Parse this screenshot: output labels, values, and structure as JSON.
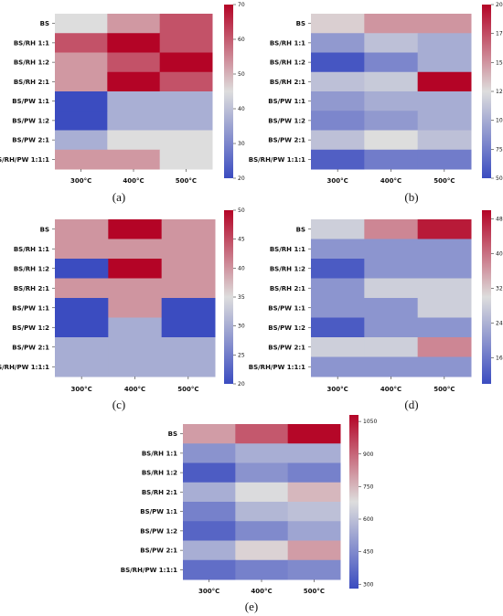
{
  "colors": {
    "low": "#3b4cc0",
    "mid": "#dddddd",
    "high": "#b40426"
  },
  "chart_data": [
    {
      "type": "heatmap",
      "panel": "(a)",
      "rows": [
        "BS",
        "BS/RH 1:1",
        "BS/RH 1:2",
        "BS/RH 2:1",
        "BS/PW 1:1",
        "BS/PW 1:2",
        "BS/PW 2:1",
        "BS/RH/PW 1:1:1"
      ],
      "columns": [
        "300°C",
        "400°C",
        "500°C"
      ],
      "values": [
        [
          45,
          53,
          61
        ],
        [
          61,
          70,
          61
        ],
        [
          53,
          61,
          70
        ],
        [
          53,
          70,
          61
        ],
        [
          20,
          37,
          37
        ],
        [
          20,
          37,
          37
        ],
        [
          37,
          45,
          45
        ],
        [
          53,
          53,
          45
        ]
      ],
      "colorbar": {
        "min": 20,
        "max": 70,
        "ticks": [
          20,
          30,
          40,
          50,
          60,
          70
        ]
      }
    },
    {
      "type": "heatmap",
      "panel": "(b)",
      "rows": [
        "BS",
        "BS/RH 1:1",
        "BS/RH 1:2",
        "BS/RH 2:1",
        "BS/PW 1:1",
        "BS/PW 1:2",
        "BS/PW 2:1",
        "BS/RH/PW 1:1:1"
      ],
      "columns": [
        "300°C",
        "400°C",
        "500°C"
      ],
      "values": [
        [
          130,
          150,
          150
        ],
        [
          90,
          110,
          100
        ],
        [
          55,
          80,
          100
        ],
        [
          110,
          115,
          200
        ],
        [
          90,
          100,
          100
        ],
        [
          80,
          90,
          100
        ],
        [
          110,
          125,
          110
        ],
        [
          60,
          75,
          75
        ]
      ],
      "colorbar": {
        "min": 50,
        "max": 200,
        "ticks": [
          50,
          75,
          100,
          125,
          150,
          175,
          200
        ]
      }
    },
    {
      "type": "heatmap",
      "panel": "(c)",
      "rows": [
        "BS",
        "BS/RH 1:1",
        "BS/RH 1:2",
        "BS/RH 2:1",
        "BS/PW 1:1",
        "BS/PW 1:2",
        "BS/PW 2:1",
        "BS/RH/PW 1:1:1"
      ],
      "columns": [
        "300°C",
        "400°C",
        "500°C"
      ],
      "values": [
        [
          40,
          50,
          40
        ],
        [
          40,
          40,
          40
        ],
        [
          20,
          50,
          40
        ],
        [
          40,
          40,
          40
        ],
        [
          20,
          40,
          20
        ],
        [
          20,
          30,
          20
        ],
        [
          30,
          30,
          30
        ],
        [
          30,
          30,
          30
        ]
      ],
      "colorbar": {
        "min": 20,
        "max": 50,
        "ticks": [
          20,
          25,
          30,
          35,
          40,
          45,
          50
        ]
      }
    },
    {
      "type": "heatmap",
      "panel": "(d)",
      "rows": [
        "BS",
        "BS/RH 1:1",
        "BS/RH 1:2",
        "BS/RH 2:1",
        "BS/PW 1:1",
        "BS/PW 1:2",
        "BS/PW 2:1",
        "BS/RH/PW 1:1:1"
      ],
      "columns": [
        "300°C",
        "400°C",
        "500°C"
      ],
      "values": [
        [
          28,
          38,
          48
        ],
        [
          20,
          20,
          20
        ],
        [
          12,
          20,
          20
        ],
        [
          20,
          28,
          28
        ],
        [
          20,
          20,
          28
        ],
        [
          12,
          20,
          20
        ],
        [
          28,
          28,
          38
        ],
        [
          20,
          20,
          20
        ]
      ],
      "colorbar": {
        "min": 10,
        "max": 50,
        "ticks": [
          16,
          24,
          32,
          40,
          48
        ]
      }
    },
    {
      "type": "heatmap",
      "panel": "(e)",
      "rows": [
        "BS",
        "BS/RH 1:1",
        "BS/RH 1:2",
        "BS/RH 2:1",
        "BS/PW 1:1",
        "BS/PW 1:2",
        "BS/PW 2:1",
        "BS/RH/PW 1:1:1"
      ],
      "columns": [
        "300°C",
        "400°C",
        "500°C"
      ],
      "values": [
        [
          800,
          925,
          1075
        ],
        [
          475,
          550,
          550
        ],
        [
          325,
          475,
          425
        ],
        [
          550,
          675,
          750
        ],
        [
          425,
          575,
          600
        ],
        [
          350,
          450,
          525
        ],
        [
          550,
          700,
          800
        ],
        [
          375,
          425,
          450
        ]
      ],
      "colorbar": {
        "min": 280,
        "max": 1080,
        "ticks": [
          300,
          450,
          600,
          750,
          900,
          1050
        ]
      }
    }
  ]
}
